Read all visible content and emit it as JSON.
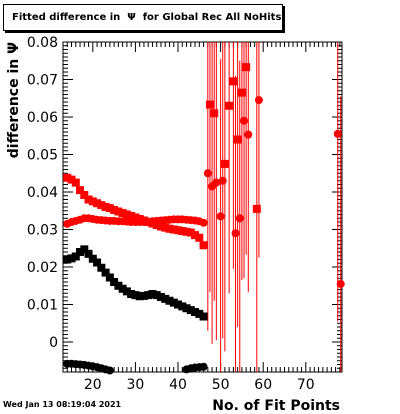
{
  "title": "Fitted difference in  Ψ  for Global Rec All NoHits",
  "datestamp": "Wed Jan 13 08:19:04 2021",
  "chart_data": {
    "type": "scatter",
    "title": "Fitted difference in  Ψ  for Global Rec All NoHits",
    "xlabel": "No. of Fit Points",
    "ylabel": "difference in  Ψ",
    "xlim": [
      13,
      78.5
    ],
    "ylim": [
      -0.008,
      0.08
    ],
    "x_ticks": [
      20,
      30,
      40,
      50,
      60,
      70
    ],
    "y_ticks": [
      0,
      0.01,
      0.02,
      0.03,
      0.04,
      0.05,
      0.06,
      0.07,
      0.08
    ],
    "grid": false,
    "legend": "none",
    "series": [
      {
        "color": "#ff0000",
        "marker": "square",
        "points": [
          {
            "x": 14,
            "y": 0.0438
          },
          {
            "x": 15,
            "y": 0.0433
          },
          {
            "x": 16,
            "y": 0.0425
          },
          {
            "x": 17,
            "y": 0.0405
          },
          {
            "x": 18,
            "y": 0.0392
          },
          {
            "x": 19,
            "y": 0.038
          },
          {
            "x": 20,
            "y": 0.0375
          },
          {
            "x": 21,
            "y": 0.037
          },
          {
            "x": 22,
            "y": 0.0365
          },
          {
            "x": 23,
            "y": 0.036
          },
          {
            "x": 24,
            "y": 0.0357
          },
          {
            "x": 25,
            "y": 0.0352
          },
          {
            "x": 26,
            "y": 0.0348
          },
          {
            "x": 27,
            "y": 0.0344
          },
          {
            "x": 28,
            "y": 0.034
          },
          {
            "x": 29,
            "y": 0.0336
          },
          {
            "x": 30,
            "y": 0.0332
          },
          {
            "x": 31,
            "y": 0.0328
          },
          {
            "x": 32,
            "y": 0.0324
          },
          {
            "x": 33,
            "y": 0.032
          },
          {
            "x": 34,
            "y": 0.0316
          },
          {
            "x": 35,
            "y": 0.0312
          },
          {
            "x": 36,
            "y": 0.0308
          },
          {
            "x": 37,
            "y": 0.0305
          },
          {
            "x": 38,
            "y": 0.0302
          },
          {
            "x": 39,
            "y": 0.03
          },
          {
            "x": 40,
            "y": 0.0298
          },
          {
            "x": 41,
            "y": 0.0296
          },
          {
            "x": 42,
            "y": 0.0294
          },
          {
            "x": 43,
            "y": 0.0292
          },
          {
            "x": 44,
            "y": 0.0285
          },
          {
            "x": 45,
            "y": 0.0278
          },
          {
            "x": 46,
            "y": 0.0258
          },
          {
            "x": 47.5,
            "y": 0.0633,
            "err": 0.05
          },
          {
            "x": 48.5,
            "y": 0.061,
            "err": 0.05
          },
          {
            "x": 51,
            "y": 0.0475,
            "err": 0.05
          },
          {
            "x": 52,
            "y": 0.063,
            "err": 0.05
          },
          {
            "x": 53,
            "y": 0.0695,
            "err": 0.05
          },
          {
            "x": 54,
            "y": 0.054,
            "err": 0.05
          },
          {
            "x": 55,
            "y": 0.0665,
            "err": 0.05
          },
          {
            "x": 56,
            "y": 0.0733,
            "err": 0.05
          },
          {
            "x": 58.5,
            "y": 0.0355,
            "err": 0.05
          }
        ]
      },
      {
        "color": "#ff0000",
        "marker": "circle",
        "points": [
          {
            "x": 14,
            "y": 0.0315
          },
          {
            "x": 15,
            "y": 0.032
          },
          {
            "x": 16,
            "y": 0.0323
          },
          {
            "x": 17,
            "y": 0.0326
          },
          {
            "x": 18,
            "y": 0.033
          },
          {
            "x": 19,
            "y": 0.033
          },
          {
            "x": 20,
            "y": 0.0328
          },
          {
            "x": 21,
            "y": 0.0326
          },
          {
            "x": 22,
            "y": 0.0325
          },
          {
            "x": 23,
            "y": 0.0324
          },
          {
            "x": 24,
            "y": 0.0323
          },
          {
            "x": 25,
            "y": 0.0323
          },
          {
            "x": 26,
            "y": 0.0322
          },
          {
            "x": 27,
            "y": 0.0322
          },
          {
            "x": 28,
            "y": 0.0321
          },
          {
            "x": 29,
            "y": 0.032
          },
          {
            "x": 30,
            "y": 0.032
          },
          {
            "x": 31,
            "y": 0.032
          },
          {
            "x": 32,
            "y": 0.032
          },
          {
            "x": 33,
            "y": 0.0321
          },
          {
            "x": 34,
            "y": 0.0322
          },
          {
            "x": 35,
            "y": 0.0323
          },
          {
            "x": 36,
            "y": 0.0324
          },
          {
            "x": 37,
            "y": 0.0325
          },
          {
            "x": 38,
            "y": 0.0326
          },
          {
            "x": 39,
            "y": 0.0327
          },
          {
            "x": 40,
            "y": 0.0327
          },
          {
            "x": 41,
            "y": 0.0327
          },
          {
            "x": 42,
            "y": 0.0326
          },
          {
            "x": 43,
            "y": 0.0325
          },
          {
            "x": 44,
            "y": 0.0324
          },
          {
            "x": 45,
            "y": 0.0322
          },
          {
            "x": 46,
            "y": 0.0318
          },
          {
            "x": 47,
            "y": 0.045,
            "err": 0.042
          },
          {
            "x": 48,
            "y": 0.0415,
            "err": 0.042
          },
          {
            "x": 49,
            "y": 0.0425,
            "err": 0.042
          },
          {
            "x": 50,
            "y": 0.0335,
            "err": 0.042
          },
          {
            "x": 50.5,
            "y": 0.043,
            "err": 0.042
          },
          {
            "x": 53.5,
            "y": 0.029,
            "err": 0.042
          },
          {
            "x": 54.5,
            "y": 0.033,
            "err": 0.042
          },
          {
            "x": 55.5,
            "y": 0.059,
            "err": 0.042
          },
          {
            "x": 56.5,
            "y": 0.0553,
            "err": 0.042
          },
          {
            "x": 59,
            "y": 0.0645,
            "err": 0.042
          },
          {
            "x": 77.5,
            "y": 0.0555,
            "err": 0.05
          },
          {
            "x": 78.2,
            "y": 0.0155,
            "err": 0.05
          }
        ]
      },
      {
        "color": "#000000",
        "marker": "square",
        "points": [
          {
            "x": 14,
            "y": 0.022
          },
          {
            "x": 15,
            "y": 0.0223
          },
          {
            "x": 16,
            "y": 0.0228
          },
          {
            "x": 17,
            "y": 0.024
          },
          {
            "x": 18,
            "y": 0.0247
          },
          {
            "x": 19,
            "y": 0.0235
          },
          {
            "x": 20,
            "y": 0.0222
          },
          {
            "x": 21,
            "y": 0.0212
          },
          {
            "x": 22,
            "y": 0.0198
          },
          {
            "x": 23,
            "y": 0.0185
          },
          {
            "x": 24,
            "y": 0.0172
          },
          {
            "x": 25,
            "y": 0.016
          },
          {
            "x": 26,
            "y": 0.015
          },
          {
            "x": 27,
            "y": 0.0142
          },
          {
            "x": 28,
            "y": 0.0135
          },
          {
            "x": 29,
            "y": 0.0128
          },
          {
            "x": 30,
            "y": 0.0125
          },
          {
            "x": 31,
            "y": 0.0122
          },
          {
            "x": 32,
            "y": 0.0123
          },
          {
            "x": 33,
            "y": 0.0125
          },
          {
            "x": 34,
            "y": 0.0128
          },
          {
            "x": 35,
            "y": 0.0125
          },
          {
            "x": 36,
            "y": 0.012
          },
          {
            "x": 37,
            "y": 0.0115
          },
          {
            "x": 38,
            "y": 0.011
          },
          {
            "x": 39,
            "y": 0.0105
          },
          {
            "x": 40,
            "y": 0.01
          },
          {
            "x": 41,
            "y": 0.0095
          },
          {
            "x": 42,
            "y": 0.009
          },
          {
            "x": 43,
            "y": 0.0085
          },
          {
            "x": 44,
            "y": 0.008
          },
          {
            "x": 45,
            "y": 0.0075
          },
          {
            "x": 46,
            "y": 0.0068
          }
        ]
      },
      {
        "color": "#000000",
        "marker": "circle",
        "points": [
          {
            "x": 14,
            "y": -0.0058
          },
          {
            "x": 15,
            "y": -0.0058
          },
          {
            "x": 16,
            "y": -0.0059
          },
          {
            "x": 17,
            "y": -0.006
          },
          {
            "x": 18,
            "y": -0.0061
          },
          {
            "x": 19,
            "y": -0.0063
          },
          {
            "x": 20,
            "y": -0.0065
          },
          {
            "x": 21,
            "y": -0.0067
          },
          {
            "x": 22,
            "y": -0.007
          },
          {
            "x": 23,
            "y": -0.0073
          },
          {
            "x": 24,
            "y": -0.0076
          },
          {
            "x": 42,
            "y": -0.0073
          },
          {
            "x": 43,
            "y": -0.007
          },
          {
            "x": 44,
            "y": -0.0068
          },
          {
            "x": 45,
            "y": -0.0067
          },
          {
            "x": 46,
            "y": -0.0066
          }
        ]
      }
    ]
  }
}
